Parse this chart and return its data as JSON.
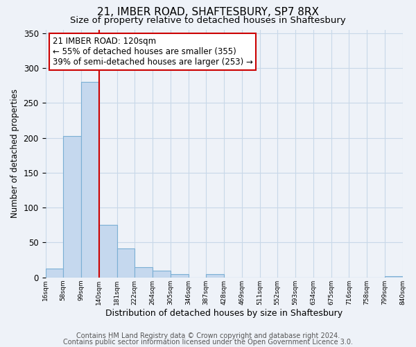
{
  "title": "21, IMBER ROAD, SHAFTESBURY, SP7 8RX",
  "subtitle": "Size of property relative to detached houses in Shaftesbury",
  "xlabel": "Distribution of detached houses by size in Shaftesbury",
  "ylabel": "Number of detached properties",
  "bar_values": [
    13,
    202,
    280,
    75,
    42,
    15,
    10,
    5,
    0,
    5,
    0,
    0,
    0,
    0,
    0,
    0,
    0,
    0,
    0,
    2
  ],
  "bin_labels": [
    "16sqm",
    "58sqm",
    "99sqm",
    "140sqm",
    "181sqm",
    "222sqm",
    "264sqm",
    "305sqm",
    "346sqm",
    "387sqm",
    "428sqm",
    "469sqm",
    "511sqm",
    "552sqm",
    "593sqm",
    "634sqm",
    "675sqm",
    "716sqm",
    "758sqm",
    "799sqm",
    "840sqm"
  ],
  "bar_color": "#c5d8ee",
  "bar_edge_color": "#7bafd4",
  "grid_color": "#c8d8e8",
  "background_color": "#eef2f8",
  "property_line_color": "#cc0000",
  "annotation_text": "21 IMBER ROAD: 120sqm\n← 55% of detached houses are smaller (355)\n39% of semi-detached houses are larger (253) →",
  "annotation_box_edgecolor": "#cc0000",
  "annotation_box_facecolor": "#ffffff",
  "ylim": [
    0,
    355
  ],
  "yticks": [
    0,
    50,
    100,
    150,
    200,
    250,
    300,
    350
  ],
  "footer_line1": "Contains HM Land Registry data © Crown copyright and database right 2024.",
  "footer_line2": "Contains public sector information licensed under the Open Government Licence 3.0.",
  "title_fontsize": 11,
  "subtitle_fontsize": 9.5,
  "annotation_fontsize": 8.5,
  "footer_fontsize": 7,
  "ylabel_fontsize": 8.5,
  "xlabel_fontsize": 9
}
